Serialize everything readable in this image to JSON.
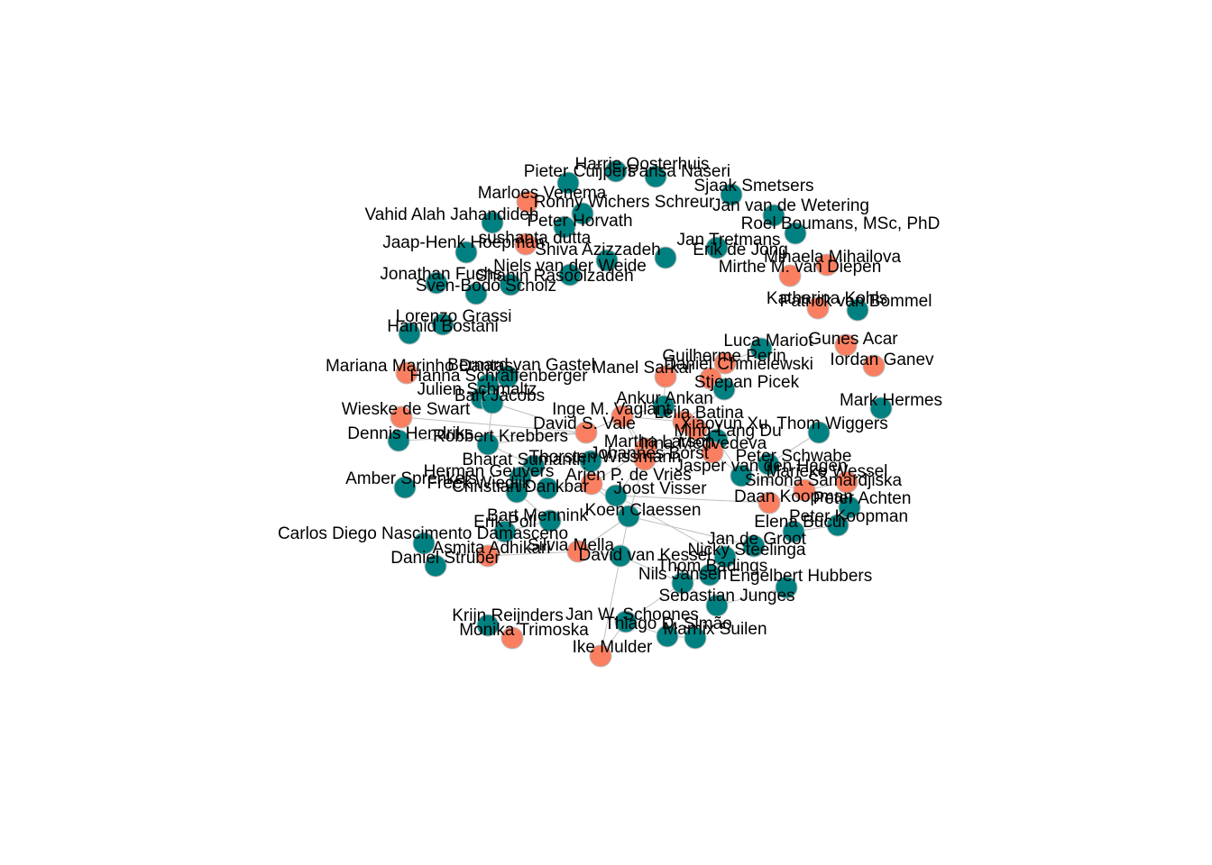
{
  "colors": {
    "group_a": "#008080",
    "group_b": "#fa7f61",
    "node_stroke": "#bdbdbd",
    "edge": "#bfbfbf"
  },
  "nodes": [
    {
      "id": 1,
      "label": "Harrie Oosterhuis",
      "group": "a"
    },
    {
      "id": 2,
      "label": "Pieter Cuijpers",
      "group": "a"
    },
    {
      "id": 3,
      "label": "Parisa Naseri",
      "group": "a"
    },
    {
      "id": 4,
      "label": "Sjaak Smetsers",
      "group": "a"
    },
    {
      "id": 5,
      "label": "Marloes Venema",
      "group": "b"
    },
    {
      "id": 6,
      "label": "Ronny Wichers Schreur",
      "group": "a"
    },
    {
      "id": 7,
      "label": "Jan van de Wetering",
      "group": "a"
    },
    {
      "id": 8,
      "label": "Vahid Alah Jahandideh",
      "group": "a"
    },
    {
      "id": 9,
      "label": "Peter Horvath",
      "group": "a"
    },
    {
      "id": 10,
      "label": "Roel Boumans, MSc, PhD",
      "group": "a"
    },
    {
      "id": 11,
      "label": "sushanta dutta",
      "group": "b"
    },
    {
      "id": 12,
      "label": "Jaap-Henk Hoepman",
      "group": "a"
    },
    {
      "id": 13,
      "label": "Shiva Azizzadeh",
      "group": "a"
    },
    {
      "id": 14,
      "label": "Jan Tretmans",
      "group": "a"
    },
    {
      "id": 15,
      "label": "Erik de Jong",
      "group": "a"
    },
    {
      "id": 16,
      "label": "Mihaela Mihailova",
      "group": "b"
    },
    {
      "id": 17,
      "label": "Niels van der Weide",
      "group": "a"
    },
    {
      "id": 18,
      "label": "Mirthe M. van Diepen",
      "group": "b"
    },
    {
      "id": 19,
      "label": "Jonathan Fuchs",
      "group": "a"
    },
    {
      "id": 20,
      "label": "Shahin Rasoolzadeh",
      "group": "a"
    },
    {
      "id": 21,
      "label": "Sven-Bodo Scholz",
      "group": "a"
    },
    {
      "id": 22,
      "label": "Katharina Kohls",
      "group": "b"
    },
    {
      "id": 23,
      "label": "Patrick van Bommel",
      "group": "a"
    },
    {
      "id": 24,
      "label": "Lorenzo Grassi",
      "group": "a"
    },
    {
      "id": 25,
      "label": "Hamid Bostani",
      "group": "a"
    },
    {
      "id": 26,
      "label": "Luca Mariot",
      "group": "a"
    },
    {
      "id": 27,
      "label": "Gunes Acar",
      "group": "b"
    },
    {
      "id": 28,
      "label": "Guilherme Perin",
      "group": "b"
    },
    {
      "id": 29,
      "label": "Iordan Ganev",
      "group": "b"
    },
    {
      "id": 30,
      "label": "Mariana Marinho Dantas",
      "group": "b"
    },
    {
      "id": 31,
      "label": "Bernard van Gastel",
      "group": "a"
    },
    {
      "id": 32,
      "label": "Daniel Chmielewski",
      "group": "b"
    },
    {
      "id": 33,
      "label": "Hanna Schraffenberger",
      "group": "a"
    },
    {
      "id": 34,
      "label": "Manel Sarkar",
      "group": "b"
    },
    {
      "id": 35,
      "label": "Stjepan Picek",
      "group": "a"
    },
    {
      "id": 36,
      "label": "Julien Schmaltz",
      "group": "a"
    },
    {
      "id": 37,
      "label": "Bart Jacobs",
      "group": "a"
    },
    {
      "id": 38,
      "label": "Ankur Ankan",
      "group": "a"
    },
    {
      "id": 39,
      "label": "Mark Hermes",
      "group": "a"
    },
    {
      "id": 40,
      "label": "Wieske de Swart",
      "group": "b"
    },
    {
      "id": 41,
      "label": "Inge M. Vaglant",
      "group": "b"
    },
    {
      "id": 42,
      "label": "Leila Batina",
      "group": "b"
    },
    {
      "id": 43,
      "label": "David S. Vale",
      "group": "b"
    },
    {
      "id": 44,
      "label": "Xiaoyun Xu",
      "group": "b"
    },
    {
      "id": 45,
      "label": "Ming-Lang Du",
      "group": "a"
    },
    {
      "id": 46,
      "label": "Thom Wiggers",
      "group": "a"
    },
    {
      "id": 47,
      "label": "Dennis Hendriks",
      "group": "a"
    },
    {
      "id": 48,
      "label": "Robbert Krebbers",
      "group": "a"
    },
    {
      "id": 49,
      "label": "Martha Larson",
      "group": "b"
    },
    {
      "id": 50,
      "label": "Irina Medvedeva",
      "group": "b"
    },
    {
      "id": 51,
      "label": "Peter Schwabe",
      "group": "a"
    },
    {
      "id": 52,
      "label": "Bharat Sumanth",
      "group": "a"
    },
    {
      "id": 53,
      "label": "Thorsten Wissmann",
      "group": "a"
    },
    {
      "id": 54,
      "label": "Johannes Borst",
      "group": "b"
    },
    {
      "id": 55,
      "label": "Jasper van den Hagen",
      "group": "a"
    },
    {
      "id": 56,
      "label": "Amber Sprenkels",
      "group": "a"
    },
    {
      "id": 57,
      "label": "Herman Geuvers",
      "group": "a"
    },
    {
      "id": 58,
      "label": "Arjen P. de Vries",
      "group": "b"
    },
    {
      "id": 59,
      "label": "Freek Wiedijk",
      "group": "a"
    },
    {
      "id": 60,
      "label": "Marieke Wessel",
      "group": "b"
    },
    {
      "id": 61,
      "label": "Christian Dankbar",
      "group": "a"
    },
    {
      "id": 62,
      "label": "Simona Samardjiska",
      "group": "b"
    },
    {
      "id": 63,
      "label": "Joost Visser",
      "group": "a"
    },
    {
      "id": 64,
      "label": "Daan Koopman",
      "group": "b"
    },
    {
      "id": 65,
      "label": "Peter Achten",
      "group": "a"
    },
    {
      "id": 66,
      "label": "Peter Koopman",
      "group": "a"
    },
    {
      "id": 67,
      "label": "Koen Claessen",
      "group": "a"
    },
    {
      "id": 68,
      "label": "Bart Mennink",
      "group": "a"
    },
    {
      "id": 69,
      "label": "Erik Poll",
      "group": "a"
    },
    {
      "id": 70,
      "label": "Elena Bucur",
      "group": "a"
    },
    {
      "id": 71,
      "label": "Jan de Groot",
      "group": "a"
    },
    {
      "id": 72,
      "label": "Carlos Diego Nascimento Damasceno",
      "group": "a"
    },
    {
      "id": 73,
      "label": "Asmita Adhikari",
      "group": "b"
    },
    {
      "id": 74,
      "label": "Silvia Mella",
      "group": "b"
    },
    {
      "id": 75,
      "label": "Nicky Steelinga",
      "group": "a"
    },
    {
      "id": 76,
      "label": "Daniel Strüber",
      "group": "a"
    },
    {
      "id": 77,
      "label": "David van Kessel",
      "group": "a"
    },
    {
      "id": 78,
      "label": "Thom Badings",
      "group": "a"
    },
    {
      "id": 79,
      "label": "Nils Jansen",
      "group": "a"
    },
    {
      "id": 80,
      "label": "Engelbert Hubbers",
      "group": "a"
    },
    {
      "id": 81,
      "label": "Sebastian Junges",
      "group": "a"
    },
    {
      "id": 82,
      "label": "Krijn Reijnders",
      "group": "a"
    },
    {
      "id": 83,
      "label": "Jan W. Schoones",
      "group": "a"
    },
    {
      "id": 84,
      "label": "Monika Trimoska",
      "group": "b"
    },
    {
      "id": 85,
      "label": "Thiago D. Simão",
      "group": "a"
    },
    {
      "id": 86,
      "label": "Marnix Suilen",
      "group": "a"
    },
    {
      "id": 87,
      "label": "Ike Mulder",
      "group": "b"
    }
  ]
}
